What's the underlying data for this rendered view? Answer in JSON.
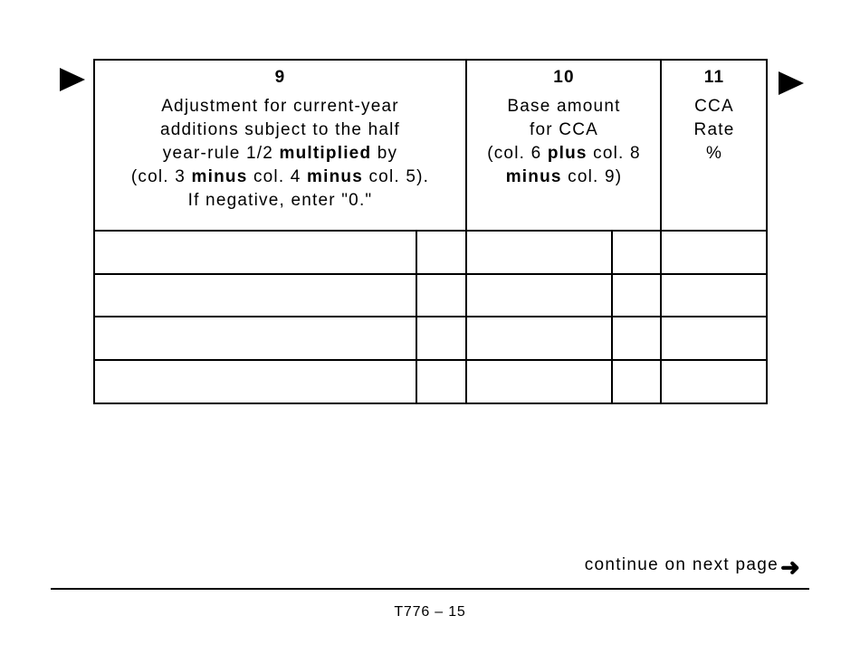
{
  "columns": [
    {
      "number": "9",
      "lines": [
        [
          "Adjustment for current-year"
        ],
        [
          "additions subject to the half"
        ],
        [
          "year-rule 1/2 ",
          "multiplied",
          " by"
        ],
        [
          "(col. 3 ",
          "minus",
          " col. 4 ",
          "minus",
          " col. 5)."
        ],
        [
          "If negative, enter \"0.\""
        ]
      ]
    },
    {
      "number": "10",
      "lines": [
        [
          "Base amount"
        ],
        [
          "for CCA"
        ],
        [
          "(col. 6 ",
          "plus",
          " col. 8"
        ],
        [
          "minus",
          " col. 9)"
        ]
      ]
    },
    {
      "number": "11",
      "lines": [
        [
          "CCA"
        ],
        [
          "Rate"
        ],
        [
          "%"
        ]
      ]
    }
  ],
  "row_count": 4,
  "footer": {
    "continue_label": "continue on next page",
    "arrow_icon": "arrow-right-icon",
    "page_number": "T776 – 15"
  }
}
